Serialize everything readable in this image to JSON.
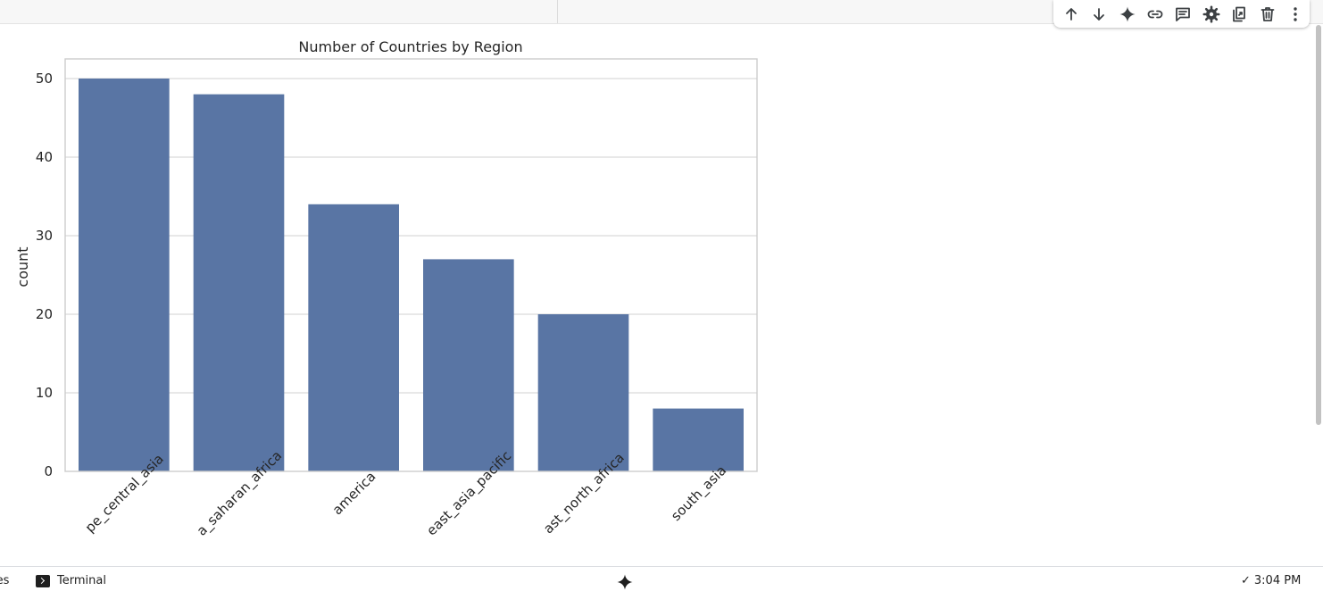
{
  "toolbar": {
    "buttons": [
      {
        "id": "move-up",
        "icon": "arrow-up-icon"
      },
      {
        "id": "move-down",
        "icon": "arrow-down-icon"
      },
      {
        "id": "gemini",
        "icon": "sparkle-icon"
      },
      {
        "id": "link",
        "icon": "link-icon"
      },
      {
        "id": "comment",
        "icon": "comment-icon"
      },
      {
        "id": "settings",
        "icon": "gear-icon"
      },
      {
        "id": "mirror",
        "icon": "mirror-cell-icon"
      },
      {
        "id": "delete",
        "icon": "trash-icon"
      },
      {
        "id": "more",
        "icon": "more-vert-icon"
      }
    ]
  },
  "chart_data": {
    "type": "bar",
    "title": "Number of Countries by Region",
    "xlabel": "",
    "ylabel": "count",
    "categories": [
      "pe_central_asia",
      "a_saharan_africa",
      "america",
      "east_asia_pacific",
      "ast_north_africa",
      "south_asia"
    ],
    "values": [
      50,
      48,
      34,
      27,
      20,
      8
    ],
    "ylim": [
      0,
      52.5
    ],
    "yticks": [
      0,
      10,
      20,
      30,
      40,
      50
    ],
    "grid": true,
    "legend": "none",
    "bar_color": "#5975a4"
  },
  "statusbar": {
    "files_label": "les",
    "terminal_label": "Terminal",
    "time": "3:04 PM"
  }
}
